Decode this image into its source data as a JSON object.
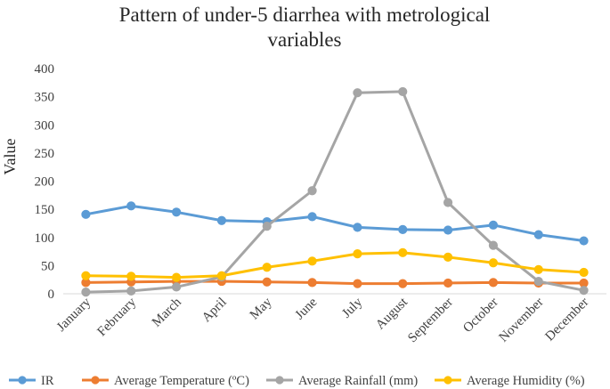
{
  "chart_data": {
    "type": "line",
    "title_lines": [
      "Pattern of under-5 diarrhea with metrological",
      "variables"
    ],
    "xlabel": "",
    "ylabel": "Value",
    "ylim": [
      0,
      400
    ],
    "yticks": [
      "0",
      "50",
      "100",
      "150",
      "200",
      "250",
      "300",
      "350",
      "400"
    ],
    "grid": false,
    "legend_position": "bottom",
    "categories": [
      "January",
      "February",
      "March",
      "April",
      "May",
      "June",
      "July",
      "August",
      "September",
      "October",
      "November",
      "December"
    ],
    "series": [
      {
        "name": "IR",
        "color": "#5B9BD5",
        "values": [
          141,
          156,
          145,
          130,
          128,
          137,
          118,
          114,
          113,
          122,
          105,
          94
        ]
      },
      {
        "name": "Average Temperature (ºC)",
        "color": "#ED7D31",
        "values": [
          20,
          21,
          22,
          22,
          21,
          20,
          18,
          18,
          19,
          20,
          19,
          19
        ]
      },
      {
        "name": "Average Rainfall (mm)",
        "color": "#A5A5A5",
        "values": [
          3,
          5,
          12,
          30,
          120,
          183,
          357,
          359,
          162,
          86,
          22,
          6
        ]
      },
      {
        "name": "Average Humidity (%)",
        "color": "#FFC000",
        "values": [
          32,
          31,
          29,
          32,
          47,
          58,
          71,
          73,
          65,
          55,
          43,
          38
        ]
      }
    ]
  }
}
